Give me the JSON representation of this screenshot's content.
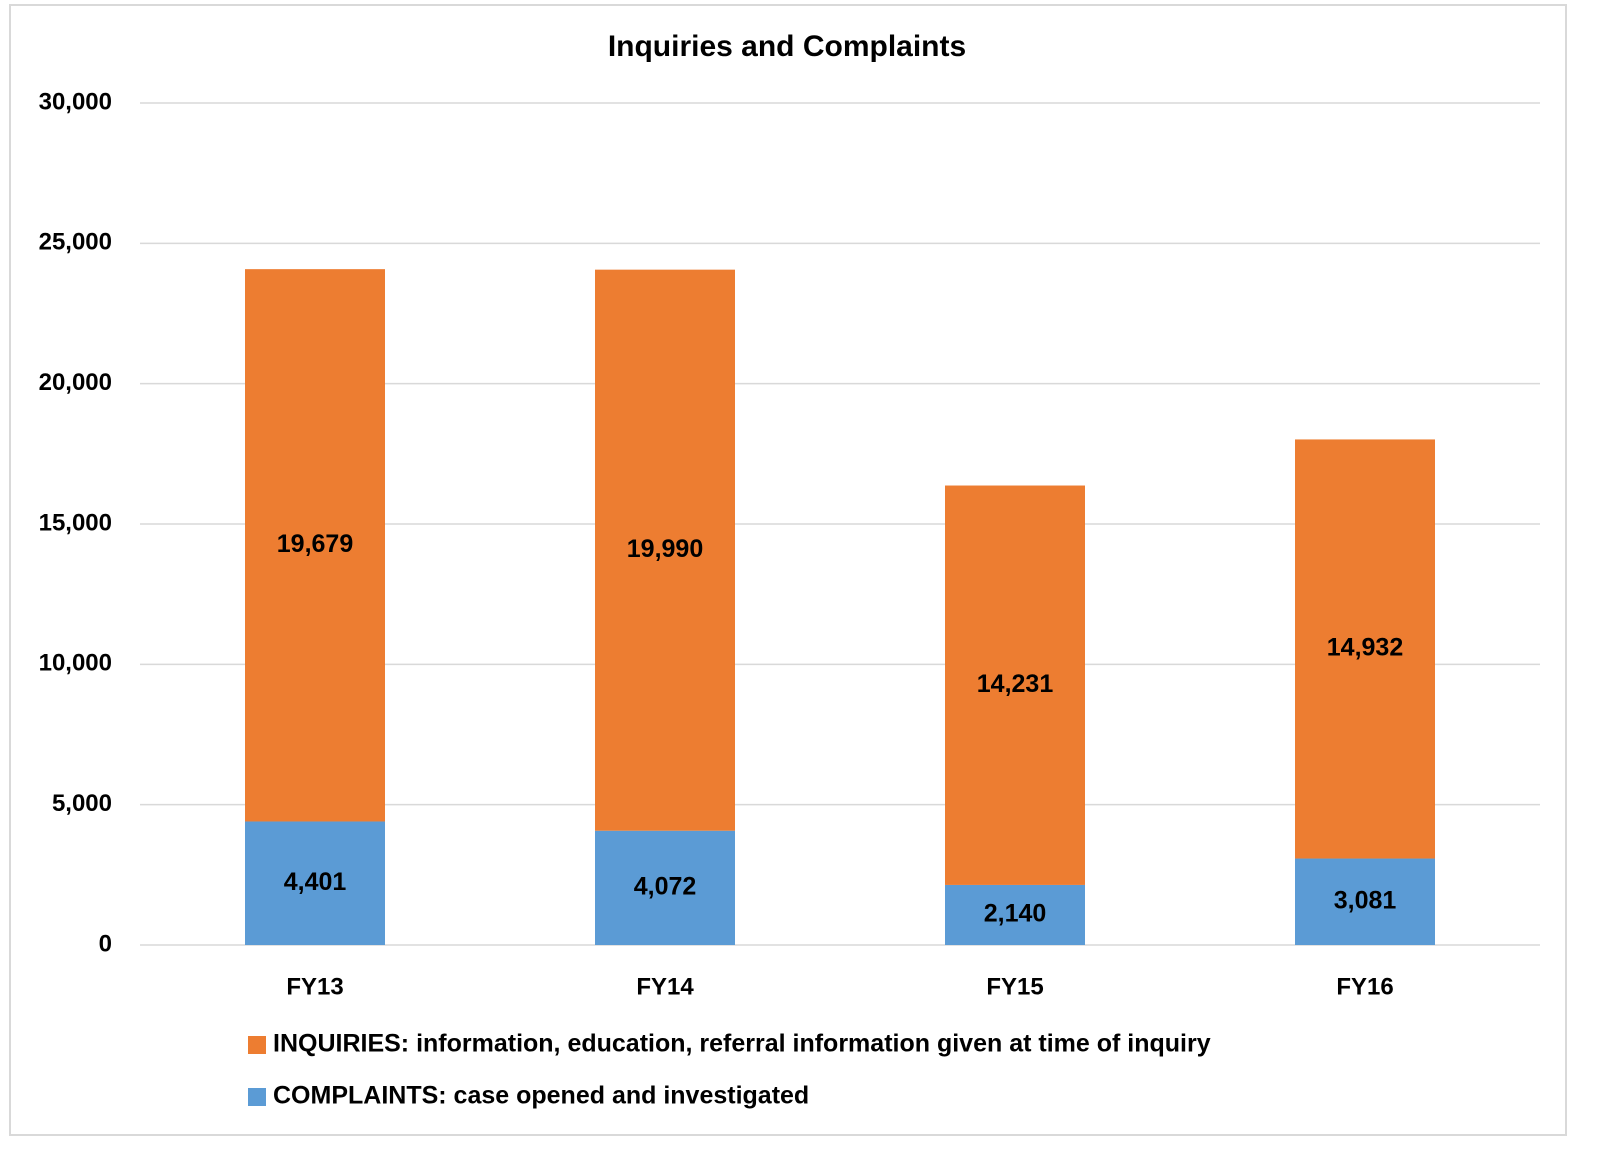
{
  "chart_data": {
    "type": "stacked_bar",
    "title": "Inquiries and Complaints",
    "categories": [
      "FY13",
      "FY14",
      "FY15",
      "FY16"
    ],
    "series": [
      {
        "name": "COMPLAINTS:  case opened and investigated",
        "color": "#5b9bd5",
        "values": [
          4401,
          4072,
          2140,
          3081
        ],
        "value_labels": [
          "4,401",
          "4,072",
          "2,140",
          "3,081"
        ]
      },
      {
        "name": "INQUIRIES:  information, education, referral information given at time of inquiry",
        "color": "#ed7d31",
        "values": [
          19679,
          19990,
          14231,
          14932
        ],
        "value_labels": [
          "19,679",
          "19,990",
          "14,231",
          "14,932"
        ]
      }
    ],
    "ylim": [
      0,
      30000
    ],
    "yticks": [
      {
        "value": 0,
        "label": "0"
      },
      {
        "value": 5000,
        "label": "5,000"
      },
      {
        "value": 10000,
        "label": "10,000"
      },
      {
        "value": 15000,
        "label": "15,000"
      },
      {
        "value": 20000,
        "label": "20,000"
      },
      {
        "value": 25000,
        "label": "25,000"
      },
      {
        "value": 30000,
        "label": "30,000"
      }
    ],
    "grid": true,
    "legend": "bottom"
  }
}
